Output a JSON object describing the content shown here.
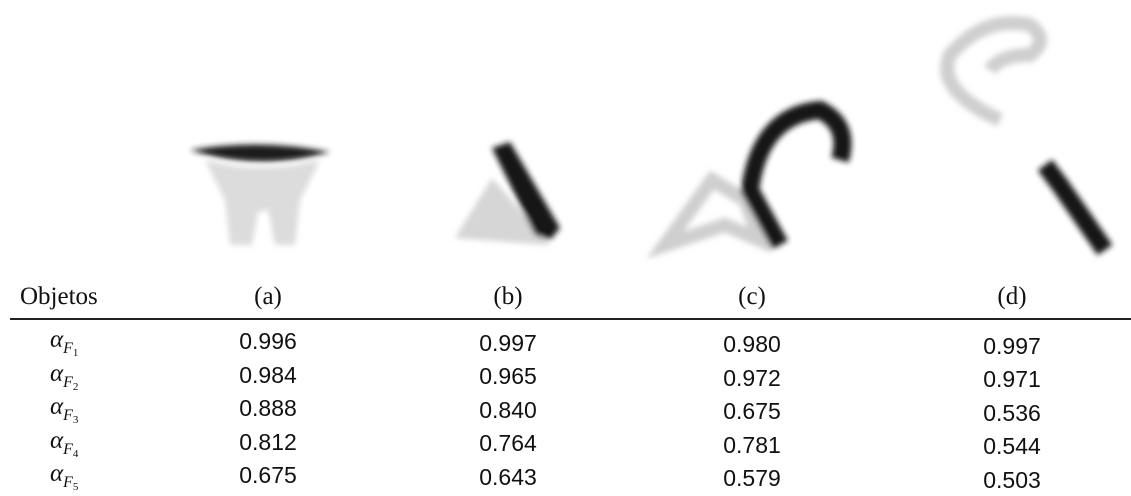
{
  "table": {
    "header": [
      "Objetos",
      "(a)",
      "(b)",
      "(c)",
      "(d)"
    ],
    "rows": [
      {
        "label": {
          "base": "α",
          "sub": "F",
          "index": "1"
        },
        "cells": [
          "0.996",
          "0.997",
          "0.980",
          "0.997"
        ]
      },
      {
        "label": {
          "base": "α",
          "sub": "F",
          "index": "2"
        },
        "cells": [
          "0.984",
          "0.965",
          "0.972",
          "0.971"
        ]
      },
      {
        "label": {
          "base": "α",
          "sub": "F",
          "index": "3"
        },
        "cells": [
          "0.888",
          "0.840",
          "0.675",
          "0.536"
        ]
      },
      {
        "label": {
          "base": "α",
          "sub": "F",
          "index": "4"
        },
        "cells": [
          "0.812",
          "0.764",
          "0.781",
          "0.544"
        ]
      },
      {
        "label": {
          "base": "α",
          "sub": "F",
          "index": "5"
        },
        "cells": [
          "0.675",
          "0.643",
          "0.579",
          "0.503"
        ]
      }
    ]
  }
}
